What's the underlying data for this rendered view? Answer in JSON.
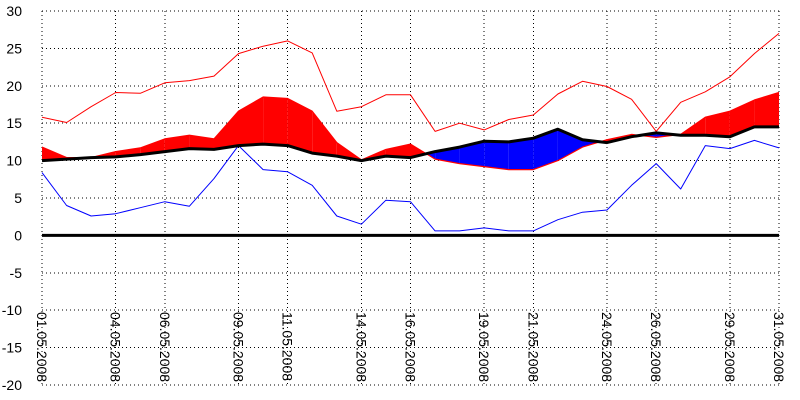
{
  "chart_data": {
    "type": "line",
    "title": "",
    "xlabel": "",
    "ylabel": "",
    "ylim": [
      -20,
      30
    ],
    "y_ticks": [
      30,
      25,
      20,
      15,
      10,
      5,
      0,
      -5,
      -10,
      -15,
      -20
    ],
    "grid": true,
    "x_tick_labels": [
      "01.05.2008",
      "04.05.2008",
      "06.05.2008",
      "09.05.2008",
      "11.05.2008",
      "14.05.2008",
      "16.05.2008",
      "19.05.2008",
      "21.05.2008",
      "24.05.2008",
      "26.05.2008",
      "29.05.2008",
      "31.05.2008"
    ],
    "x_tick_days": [
      1,
      4,
      6,
      9,
      11,
      14,
      16,
      19,
      21,
      24,
      26,
      29,
      31
    ],
    "x_days": [
      1,
      2,
      3,
      4,
      5,
      6,
      7,
      8,
      9,
      10,
      11,
      12,
      13,
      14,
      15,
      16,
      17,
      18,
      19,
      20,
      21,
      22,
      23,
      24,
      25,
      26,
      27,
      28,
      29,
      30,
      31
    ],
    "series": [
      {
        "role": "max",
        "color": "#ff0000",
        "values": [
          15.8,
          15.1,
          17.2,
          19.1,
          19.0,
          20.4,
          20.7,
          21.3,
          24.3,
          25.3,
          26.0,
          24.4,
          16.6,
          17.2,
          18.8,
          18.8,
          13.9,
          15.0,
          14.1,
          15.5,
          16.1,
          18.9,
          20.6,
          19.9,
          18.2,
          13.9,
          17.8,
          19.2,
          21.2,
          24.3,
          27.0
        ]
      },
      {
        "role": "mean",
        "color": "#ff0000",
        "values": [
          11.8,
          10.4,
          10.4,
          11.2,
          11.7,
          12.9,
          13.4,
          12.9,
          16.6,
          18.5,
          18.3,
          16.6,
          12.4,
          10.1,
          11.5,
          12.2,
          10.2,
          9.6,
          9.2,
          8.8,
          8.8,
          10.0,
          11.8,
          12.8,
          13.5,
          13.1,
          13.5,
          15.8,
          16.6,
          18.1,
          19.1
        ]
      },
      {
        "role": "norm",
        "color": "#000000",
        "values": [
          10.0,
          10.2,
          10.4,
          10.5,
          10.8,
          11.2,
          11.6,
          11.5,
          12.0,
          12.2,
          12.0,
          11.0,
          10.6,
          10.0,
          10.6,
          10.4,
          11.2,
          11.8,
          12.6,
          12.5,
          13.0,
          14.2,
          12.8,
          12.4,
          13.2,
          13.7,
          13.4,
          13.4,
          13.2,
          14.5,
          14.5
        ]
      },
      {
        "role": "min",
        "color": "#0000ff",
        "values": [
          8.4,
          4.0,
          2.6,
          2.9,
          3.7,
          4.5,
          3.9,
          7.6,
          12.0,
          8.8,
          8.5,
          6.7,
          2.6,
          1.5,
          4.7,
          4.5,
          0.6,
          0.6,
          1.0,
          0.6,
          0.6,
          2.1,
          3.1,
          3.4,
          6.7,
          9.6,
          6.2,
          12.0,
          11.6,
          12.7,
          11.7
        ]
      }
    ],
    "fill_above_norm_color": "#ff0000",
    "fill_below_norm_color": "#0000ff",
    "zero_line_color": "#000000"
  }
}
